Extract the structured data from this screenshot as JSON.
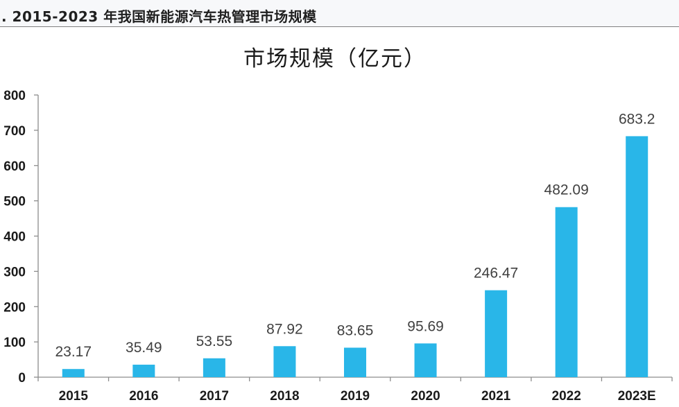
{
  "figure": {
    "caption": ". 2015-2023 年我国新能源汽车热管理市场规模"
  },
  "chart_data": {
    "type": "bar",
    "title": "市场规模（亿元）",
    "xlabel": "",
    "ylabel": "",
    "categories": [
      "2015",
      "2016",
      "2017",
      "2018",
      "2019",
      "2020",
      "2021",
      "2022",
      "2023E"
    ],
    "values": [
      23.17,
      35.49,
      53.55,
      87.92,
      83.65,
      95.69,
      246.47,
      482.09,
      683.2
    ],
    "data_labels": [
      "23.17",
      "35.49",
      "53.55",
      "87.92",
      "83.65",
      "95.69",
      "246.47",
      "482.09",
      "683.2"
    ],
    "ylim": [
      0,
      800
    ],
    "yticks": [
      0,
      100,
      200,
      300,
      400,
      500,
      600,
      700,
      800
    ],
    "ytick_labels": [
      "0",
      "100",
      "200",
      "300",
      "400",
      "500",
      "600",
      "700",
      "800"
    ],
    "grid": false,
    "legend": "none",
    "colors": {
      "bar": "#29b6e8",
      "axis": "#8c8c8c"
    }
  }
}
